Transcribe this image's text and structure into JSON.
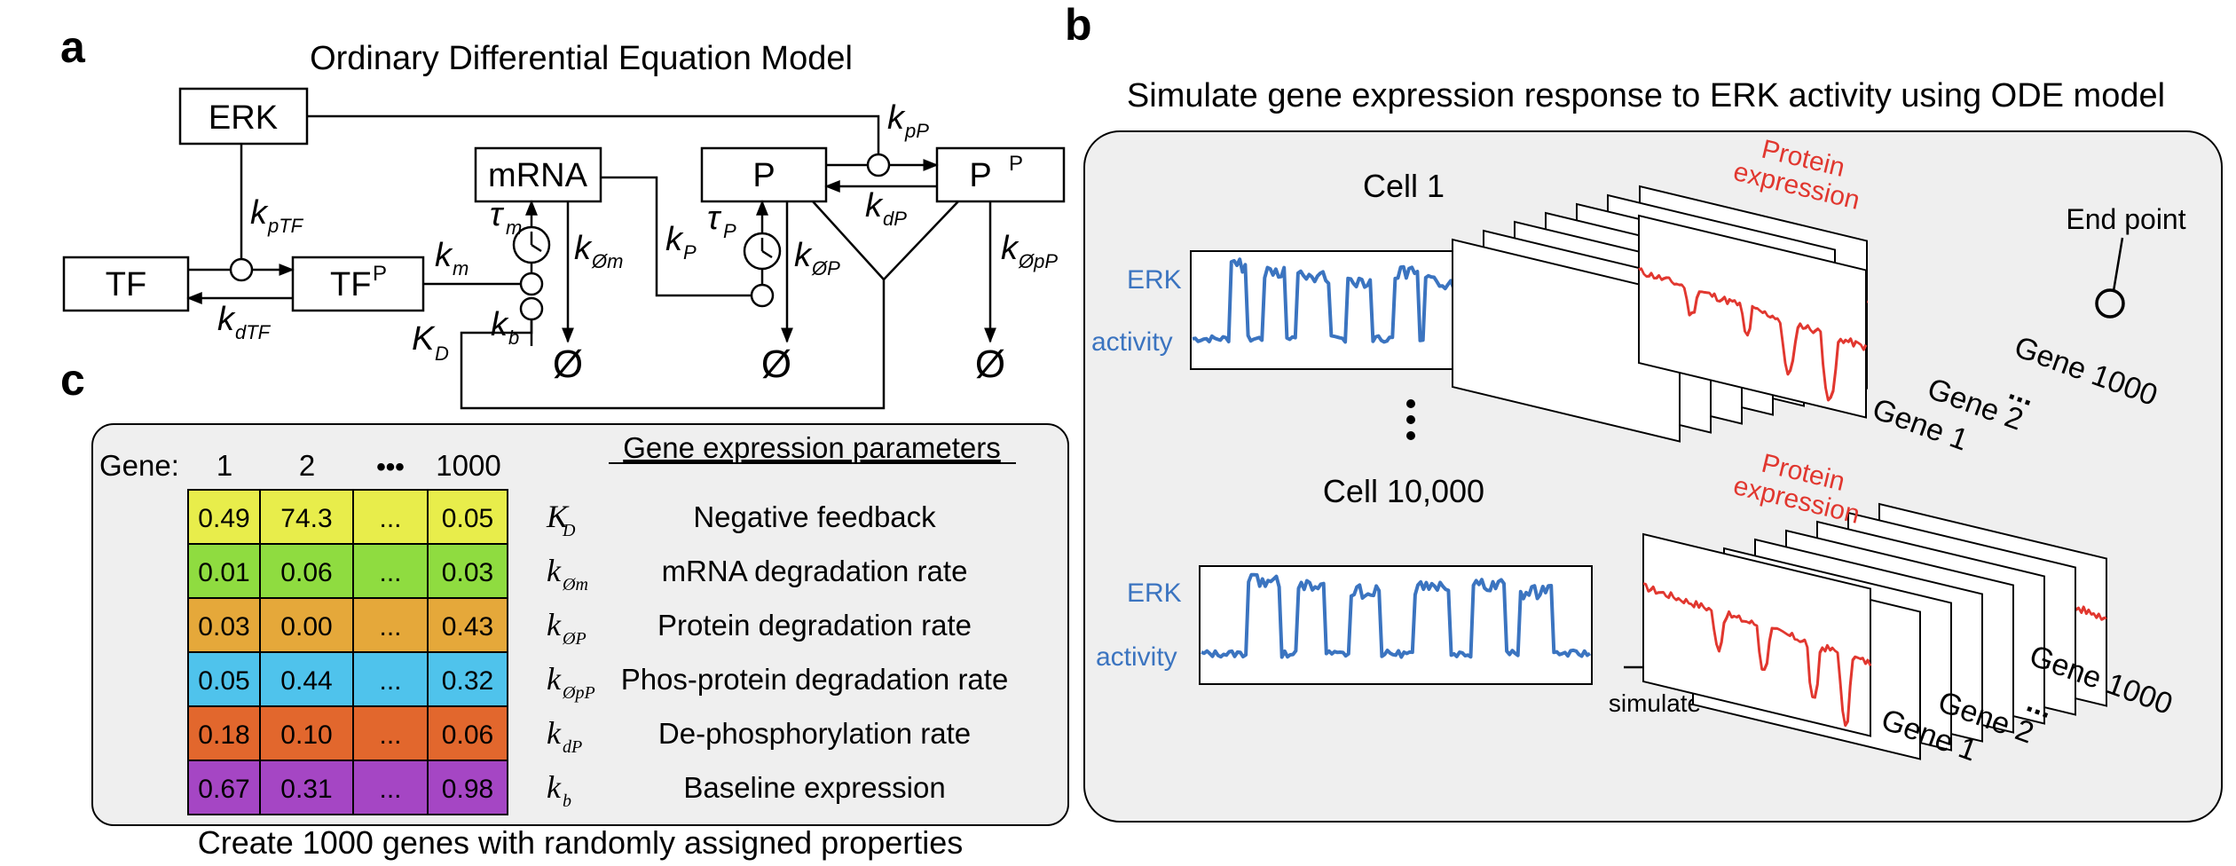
{
  "panels": {
    "a": "a",
    "b": "b",
    "c": "c"
  },
  "panel_a": {
    "title": "Ordinary Differential Equation Model",
    "boxes": {
      "erk": "ERK",
      "tf": "TF",
      "tfp": "TF",
      "tfp_sup": "P",
      "mrna": "mRNA",
      "p": "P",
      "pp": "P",
      "pp_sup": "P"
    },
    "rates": {
      "k_ptf": {
        "k": "k",
        "sub": "pTF"
      },
      "k_dtf": {
        "k": "k",
        "sub": "dTF"
      },
      "k_m": {
        "k": "k",
        "sub": "m"
      },
      "tau_m": {
        "k": "τ",
        "sub": "m"
      },
      "k_b": {
        "k": "k",
        "sub": "b"
      },
      "K_D": {
        "k": "K",
        "sub": "D"
      },
      "k_0m": {
        "k": "k",
        "sub": "Øm"
      },
      "k_P": {
        "k": "k",
        "sub": "P"
      },
      "tau_P": {
        "k": "τ",
        "sub": "P"
      },
      "k_0P": {
        "k": "k",
        "sub": "ØP"
      },
      "k_pP": {
        "k": "k",
        "sub": "pP"
      },
      "k_dP": {
        "k": "k",
        "sub": "dP"
      },
      "k_0pP": {
        "k": "k",
        "sub": "ØpP"
      }
    },
    "null_symbol": "Ø"
  },
  "panel_b": {
    "title": "Simulate gene expression response to ERK activity using ODE model",
    "cell1": "Cell 1",
    "cell2": "Cell 10,000",
    "erk_label_1": "ERK",
    "erk_label_2": "activity",
    "simulate": "simulate",
    "protein_1": "Protein",
    "protein_2": "expression",
    "end_point": "End point",
    "gene1": "Gene 1",
    "gene2": "Gene 2",
    "gene1000": "Gene 1000",
    "vdots": "⋮",
    "dots": "...",
    "colors": {
      "erk": "#3b74c0",
      "protein": "#e1372f",
      "panel_bg": "#efefef"
    }
  },
  "panel_c": {
    "header_gene": "Gene:",
    "columns": [
      "1",
      "2",
      "•••",
      "1000"
    ],
    "params_title": "Gene expression parameters",
    "rows": [
      {
        "values": [
          "0.49",
          "74.3",
          "...",
          "0.05"
        ],
        "sym": "K",
        "sub": "D",
        "desc": "Negative feedback",
        "color": "#e8ed4b"
      },
      {
        "values": [
          "0.01",
          "0.06",
          "...",
          "0.03"
        ],
        "sym": "k",
        "sub": "Øm",
        "desc": "mRNA degradation rate",
        "color": "#8fdc40"
      },
      {
        "values": [
          "0.03",
          "0.00",
          "...",
          "0.43"
        ],
        "sym": "k",
        "sub": "ØP",
        "desc": "Protein degradation rate",
        "color": "#e5a83a"
      },
      {
        "values": [
          "0.05",
          "0.44",
          "...",
          "0.32"
        ],
        "sym": "k",
        "sub": "ØpP",
        "desc": "Phos-protein degradation rate",
        "color": "#4fc3ec"
      },
      {
        "values": [
          "0.18",
          "0.10",
          "...",
          "0.06"
        ],
        "sym": "k",
        "sub": "dP",
        "desc": "De-phosphorylation rate",
        "color": "#e2672d"
      },
      {
        "values": [
          "0.67",
          "0.31",
          "...",
          "0.98"
        ],
        "sym": "k",
        "sub": "b",
        "desc": "Baseline expression",
        "color": "#a546c4"
      }
    ],
    "caption": "Create 1000 genes with randomly assigned properties",
    "panel_bg": "#efefef"
  }
}
